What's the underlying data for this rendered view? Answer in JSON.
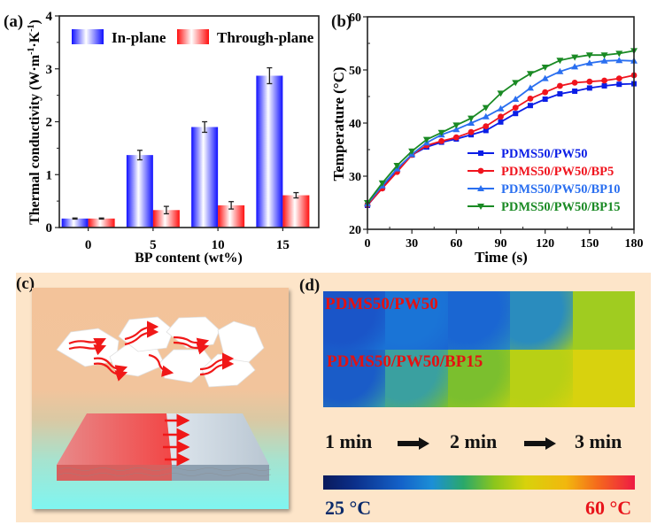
{
  "panels": {
    "a": "(a)",
    "b": "(b)",
    "c": "(c)",
    "d": "(d)"
  },
  "chart_data": [
    {
      "id": "a",
      "type": "bar",
      "title": "",
      "xlabel": "BP content (wt%)",
      "ylabel": "Thermal conductivity (W·m⁻¹·K⁻¹)",
      "categories": [
        "0",
        "5",
        "10",
        "15"
      ],
      "ylim": [
        0,
        4
      ],
      "yticks": [
        0,
        1,
        2,
        3,
        4
      ],
      "legend_position": "top",
      "series": [
        {
          "name": "In-plane",
          "color": "#1a1aff",
          "values": [
            0.17,
            1.37,
            1.9,
            2.87
          ],
          "errors": [
            0.01,
            0.09,
            0.1,
            0.15
          ]
        },
        {
          "name": "Through-plane",
          "color": "#ff1a1a",
          "values": [
            0.17,
            0.33,
            0.42,
            0.61
          ],
          "errors": [
            0.01,
            0.07,
            0.07,
            0.05
          ]
        }
      ]
    },
    {
      "id": "b",
      "type": "line",
      "title": "",
      "xlabel": "Time (s)",
      "ylabel": "Temperature (°C)",
      "xlim": [
        0,
        180
      ],
      "ylim": [
        20,
        60
      ],
      "xticks": [
        0,
        30,
        60,
        90,
        120,
        150,
        180
      ],
      "yticks": [
        20,
        30,
        40,
        50,
        60
      ],
      "legend_position": "bottom-right",
      "x": [
        0,
        10,
        20,
        30,
        40,
        50,
        60,
        70,
        80,
        90,
        100,
        110,
        120,
        130,
        140,
        150,
        160,
        170,
        180
      ],
      "series": [
        {
          "name": "PDMS50/PW50",
          "color": "#0b1ee6",
          "marker": "square",
          "values": [
            24.5,
            27.8,
            31.0,
            34.0,
            35.5,
            36.4,
            37.0,
            37.8,
            38.6,
            40.2,
            41.8,
            43.3,
            44.5,
            45.5,
            46.0,
            46.6,
            47.0,
            47.3,
            47.4
          ]
        },
        {
          "name": "PDMS50/PW50/BP5",
          "color": "#f0141e",
          "marker": "circle",
          "values": [
            24.6,
            27.7,
            30.8,
            34.0,
            35.8,
            36.6,
            37.3,
            38.3,
            39.4,
            41.2,
            42.9,
            44.6,
            45.8,
            47.0,
            47.6,
            47.8,
            48.0,
            48.4,
            49.0
          ]
        },
        {
          "name": "PDMS50/PW50/BP10",
          "color": "#2a6ff0",
          "marker": "triangle-up",
          "values": [
            24.8,
            28.2,
            31.4,
            34.1,
            36.3,
            37.8,
            38.8,
            40.0,
            41.2,
            42.7,
            44.5,
            46.6,
            48.4,
            49.7,
            50.6,
            51.3,
            51.7,
            51.8,
            51.7
          ]
        },
        {
          "name": "PDMS50/PW50/BP15",
          "color": "#1a8a24",
          "marker": "triangle-down",
          "values": [
            25.0,
            28.7,
            32.0,
            34.7,
            36.9,
            38.2,
            39.6,
            40.9,
            42.9,
            45.6,
            47.6,
            49.3,
            50.5,
            51.8,
            52.4,
            52.8,
            52.8,
            53.1,
            53.6
          ]
        }
      ]
    }
  ],
  "thermal": {
    "rows": [
      {
        "label": "PDMS50/PW50",
        "cells": [
          "#1a55c8",
          "#1a74d6",
          "#1a66d2",
          "#2a8cbe",
          "#a0cc20"
        ]
      },
      {
        "label": "PDMS50/PW50/BP15",
        "cells": [
          "#1a5cc8",
          "#3aa0a0",
          "#7bbf2e",
          "#b8d015",
          "#d8d20e"
        ]
      }
    ],
    "times": [
      "1 min",
      "2 min",
      "3 min"
    ],
    "colorbar": {
      "min_label": "25 °C",
      "max_label": "60 °C",
      "min": 25,
      "max": 60
    }
  },
  "schematic": {
    "description": "Hexagonal BP flakes with heat-flow arrows above a layered composite slab, red heated half conducting heat laterally"
  }
}
